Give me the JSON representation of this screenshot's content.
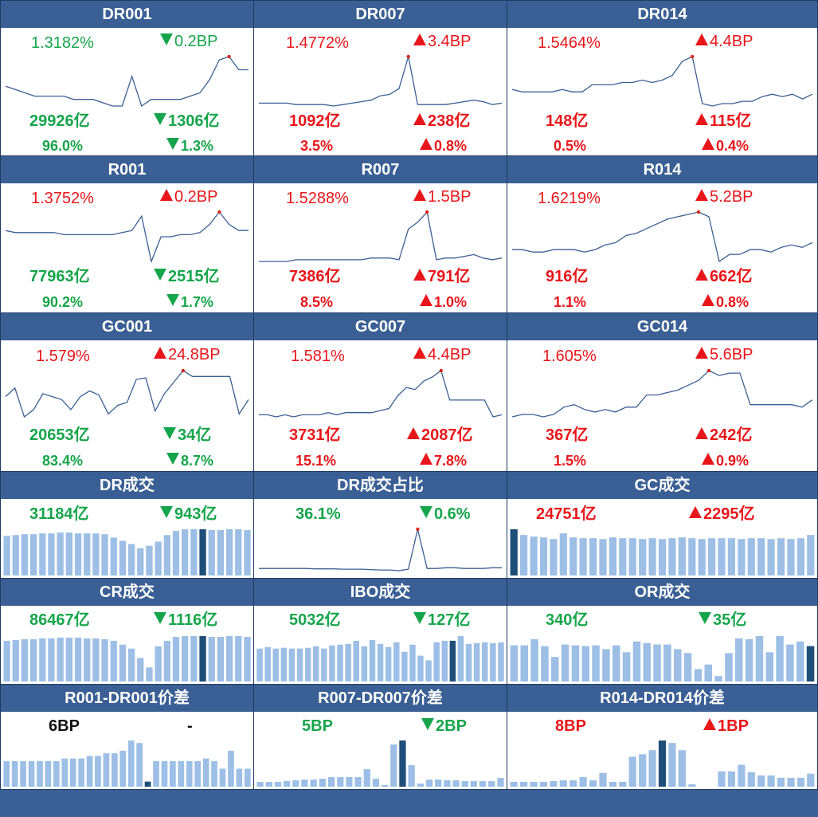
{
  "colors": {
    "title_bg": "#3a5f94",
    "line": "#3a5f94",
    "bar": "#9dbfe6",
    "bar_hi": "#1f4e79",
    "up": "#e8161a",
    "down": "#16a54b",
    "marker": "#d9261c"
  },
  "panels": [
    {
      "id": "dr001",
      "title": "DR001",
      "rate": "1.3182%",
      "rate_dir": "down",
      "chg": "0.2BP",
      "chg_dir": "down",
      "vol": "29926亿",
      "vol_dir": "down",
      "vol_chg": "1306亿",
      "vol_chg_dir": "down",
      "share": "96.0%",
      "share_dir": "down",
      "share_chg": "1.3%",
      "share_chg_dir": "down",
      "chart_data": {
        "type": "line",
        "values": [
          1.28,
          1.27,
          1.26,
          1.25,
          1.25,
          1.25,
          1.25,
          1.24,
          1.24,
          1.24,
          1.23,
          1.22,
          1.22,
          1.31,
          1.22,
          1.24,
          1.24,
          1.24,
          1.24,
          1.25,
          1.26,
          1.3,
          1.36,
          1.37,
          1.33,
          1.33
        ],
        "highlight": 23
      }
    },
    {
      "id": "dr007",
      "title": "DR007",
      "rate": "1.4772%",
      "rate_dir": "up",
      "chg": "3.4BP",
      "chg_dir": "up",
      "vol": "1092亿",
      "vol_dir": "up",
      "vol_chg": "238亿",
      "vol_chg_dir": "up",
      "share": "3.5%",
      "share_dir": "up",
      "share_chg": "0.8%",
      "share_chg_dir": "up",
      "chart_data": {
        "type": "line",
        "values": [
          1.42,
          1.42,
          1.42,
          1.42,
          1.41,
          1.41,
          1.41,
          1.41,
          1.4,
          1.41,
          1.42,
          1.43,
          1.44,
          1.47,
          1.48,
          1.52,
          1.74,
          1.41,
          1.41,
          1.41,
          1.41,
          1.42,
          1.43,
          1.44,
          1.43,
          1.41,
          1.42
        ],
        "highlight": 16
      }
    },
    {
      "id": "dr014",
      "title": "DR014",
      "rate": "1.5464%",
      "rate_dir": "up",
      "chg": "4.4BP",
      "chg_dir": "up",
      "vol": "148亿",
      "vol_dir": "up",
      "vol_chg": "115亿",
      "vol_chg_dir": "up",
      "share": "0.5%",
      "share_dir": "up",
      "share_chg": "0.4%",
      "share_chg_dir": "up",
      "chart_data": {
        "type": "line",
        "values": [
          1.5,
          1.49,
          1.49,
          1.49,
          1.49,
          1.5,
          1.49,
          1.49,
          1.52,
          1.52,
          1.52,
          1.53,
          1.53,
          1.54,
          1.53,
          1.54,
          1.56,
          1.62,
          1.64,
          1.44,
          1.43,
          1.44,
          1.44,
          1.45,
          1.45,
          1.47,
          1.48,
          1.47,
          1.48,
          1.46,
          1.48
        ],
        "highlight": 18
      }
    },
    {
      "id": "r001",
      "title": "R001",
      "rate": "1.3752%",
      "rate_dir": "up",
      "chg": "0.2BP",
      "chg_dir": "up",
      "vol": "77963亿",
      "vol_dir": "down",
      "vol_chg": "2515亿",
      "vol_chg_dir": "down",
      "share": "90.2%",
      "share_dir": "down",
      "share_chg": "1.7%",
      "share_chg_dir": "down",
      "chart_data": {
        "type": "line",
        "values": [
          1.33,
          1.32,
          1.32,
          1.32,
          1.32,
          1.32,
          1.31,
          1.31,
          1.31,
          1.31,
          1.31,
          1.31,
          1.32,
          1.33,
          1.4,
          1.18,
          1.3,
          1.3,
          1.31,
          1.31,
          1.32,
          1.36,
          1.42,
          1.36,
          1.33,
          1.33
        ],
        "highlight": 22
      }
    },
    {
      "id": "r007",
      "title": "R007",
      "rate": "1.5288%",
      "rate_dir": "up",
      "chg": "1.5BP",
      "chg_dir": "up",
      "vol": "7386亿",
      "vol_dir": "up",
      "vol_chg": "791亿",
      "vol_chg_dir": "up",
      "share": "8.5%",
      "share_dir": "up",
      "share_chg": "1.0%",
      "share_chg_dir": "up",
      "chart_data": {
        "type": "line",
        "values": [
          1.43,
          1.43,
          1.43,
          1.43,
          1.44,
          1.44,
          1.44,
          1.44,
          1.44,
          1.44,
          1.44,
          1.44,
          1.45,
          1.45,
          1.45,
          1.44,
          1.62,
          1.66,
          1.72,
          1.44,
          1.45,
          1.45,
          1.46,
          1.47,
          1.45,
          1.44,
          1.45
        ],
        "highlight": 18
      }
    },
    {
      "id": "r014",
      "title": "R014",
      "rate": "1.6219%",
      "rate_dir": "up",
      "chg": "5.2BP",
      "chg_dir": "up",
      "vol": "916亿",
      "vol_dir": "up",
      "vol_chg": "662亿",
      "vol_chg_dir": "up",
      "share": "1.1%",
      "share_dir": "up",
      "share_chg": "0.8%",
      "share_chg_dir": "up",
      "chart_data": {
        "type": "line",
        "values": [
          1.53,
          1.53,
          1.52,
          1.52,
          1.53,
          1.53,
          1.53,
          1.52,
          1.53,
          1.55,
          1.56,
          1.59,
          1.6,
          1.62,
          1.64,
          1.66,
          1.67,
          1.68,
          1.69,
          1.67,
          1.48,
          1.51,
          1.51,
          1.53,
          1.53,
          1.52,
          1.54,
          1.55,
          1.54,
          1.56
        ],
        "highlight": 18
      }
    },
    {
      "id": "gc001",
      "title": "GC001",
      "rate": "1.579%",
      "rate_dir": "up",
      "chg": "24.8BP",
      "chg_dir": "up",
      "vol": "20653亿",
      "vol_dir": "down",
      "vol_chg": "34亿",
      "vol_chg_dir": "down",
      "share": "83.4%",
      "share_dir": "down",
      "share_chg": "8.7%",
      "share_chg_dir": "down",
      "chart_data": {
        "type": "line",
        "values": [
          1.4,
          1.46,
          1.26,
          1.31,
          1.42,
          1.4,
          1.38,
          1.31,
          1.4,
          1.44,
          1.41,
          1.28,
          1.34,
          1.36,
          1.52,
          1.53,
          1.3,
          1.42,
          1.5,
          1.58,
          1.54,
          1.54,
          1.54,
          1.54,
          1.54,
          1.28,
          1.38
        ],
        "highlight": 19
      }
    },
    {
      "id": "gc007",
      "title": "GC007",
      "rate": "1.581%",
      "rate_dir": "up",
      "chg": "4.4BP",
      "chg_dir": "up",
      "vol": "3731亿",
      "vol_dir": "up",
      "vol_chg": "2087亿",
      "vol_chg_dir": "up",
      "share": "15.1%",
      "share_dir": "up",
      "share_chg": "7.8%",
      "share_chg_dir": "up",
      "chart_data": {
        "type": "line",
        "values": [
          1.37,
          1.37,
          1.36,
          1.37,
          1.36,
          1.37,
          1.37,
          1.37,
          1.38,
          1.37,
          1.38,
          1.38,
          1.38,
          1.38,
          1.39,
          1.4,
          1.46,
          1.5,
          1.49,
          1.53,
          1.55,
          1.58,
          1.44,
          1.44,
          1.44,
          1.44,
          1.44,
          1.36,
          1.37
        ],
        "highlight": 21
      }
    },
    {
      "id": "gc014",
      "title": "GC014",
      "rate": "1.605%",
      "rate_dir": "up",
      "chg": "5.6BP",
      "chg_dir": "up",
      "vol": "367亿",
      "vol_dir": "up",
      "vol_chg": "242亿",
      "vol_chg_dir": "up",
      "share": "1.5%",
      "share_dir": "up",
      "share_chg": "0.9%",
      "share_chg_dir": "up",
      "chart_data": {
        "type": "line",
        "values": [
          1.42,
          1.43,
          1.43,
          1.42,
          1.43,
          1.46,
          1.47,
          1.45,
          1.44,
          1.45,
          1.44,
          1.46,
          1.46,
          1.51,
          1.51,
          1.52,
          1.53,
          1.55,
          1.57,
          1.61,
          1.59,
          1.6,
          1.6,
          1.47,
          1.47,
          1.47,
          1.47,
          1.47,
          1.46,
          1.49
        ],
        "highlight": 19
      }
    },
    {
      "id": "dr_vol",
      "title": "DR成交",
      "v1": "31184亿",
      "v1_dir": "down",
      "v2": "943亿",
      "v2_dir": "down",
      "chart_data": {
        "type": "bar",
        "values": [
          48,
          49,
          50,
          50,
          51,
          51,
          52,
          52,
          51,
          51,
          51,
          50,
          46,
          42,
          38,
          33,
          36,
          41,
          49,
          54,
          56,
          56,
          56,
          55,
          55,
          56,
          56,
          55
        ],
        "highlight": 22
      }
    },
    {
      "id": "dr_share",
      "title": "DR成交占比",
      "v1": "36.1%",
      "v1_dir": "down",
      "v2": "0.6%",
      "v2_dir": "down",
      "chart_data": {
        "type": "line",
        "values": [
          30,
          30,
          30,
          30,
          30,
          30,
          29.5,
          29.5,
          29.5,
          29,
          29,
          29,
          28.5,
          28,
          28,
          27,
          29,
          83,
          30,
          30,
          31,
          31,
          30,
          30,
          30,
          31,
          31
        ],
        "highlight": 17
      }
    },
    {
      "id": "gc_vol",
      "title": "GC成交",
      "v1": "24751亿",
      "v1_dir": "up",
      "v2": "2295亿",
      "v2_dir": "up",
      "chart_data": {
        "type": "bar",
        "values": [
          57,
          50,
          48,
          47,
          45,
          52,
          47,
          46,
          46,
          45,
          47,
          46,
          46,
          45,
          46,
          45,
          46,
          47,
          46,
          45,
          46,
          46,
          46,
          45,
          46,
          46,
          45,
          46,
          45,
          46,
          50
        ],
        "highlight": 0
      }
    },
    {
      "id": "cr_vol",
      "title": "CR成交",
      "v1": "86467亿",
      "v1_dir": "down",
      "v2": "1116亿",
      "v2_dir": "down",
      "chart_data": {
        "type": "bar",
        "values": [
          52,
          53,
          54,
          54,
          55,
          55,
          56,
          56,
          56,
          55,
          55,
          54,
          52,
          47,
          42,
          30,
          18,
          45,
          52,
          57,
          58,
          58,
          58,
          57,
          57,
          58,
          58,
          57
        ],
        "highlight": 22
      }
    },
    {
      "id": "ibo_vol",
      "title": "IBO成交",
      "v1": "5032亿",
      "v1_dir": "down",
      "v2": "127亿",
      "v2_dir": "down",
      "chart_data": {
        "type": "bar",
        "values": [
          42,
          44,
          42,
          43,
          42,
          42,
          43,
          45,
          42,
          46,
          47,
          48,
          52,
          45,
          53,
          48,
          44,
          50,
          38,
          47,
          33,
          27,
          50,
          52,
          52,
          58,
          48,
          49,
          50,
          49,
          50
        ],
        "highlight": 24
      }
    },
    {
      "id": "or_vol",
      "title": "OR成交",
      "v1": "340亿",
      "v1_dir": "down",
      "v2": "35亿",
      "v2_dir": "down",
      "chart_data": {
        "type": "bar",
        "values": [
          47,
          47,
          55,
          46,
          32,
          48,
          47,
          46,
          47,
          42,
          47,
          38,
          52,
          50,
          48,
          48,
          42,
          37,
          16,
          22,
          7,
          37,
          56,
          55,
          59,
          38,
          59,
          48,
          52,
          46
        ],
        "highlight": 29
      }
    },
    {
      "id": "spread1",
      "title": "R001-DR001价差",
      "v1": "6BP",
      "v1_dir": "none",
      "v2": "-",
      "v2_dir": "none",
      "chart_data": {
        "type": "bar",
        "values": [
          5,
          5,
          5,
          5,
          5,
          5,
          5,
          5.5,
          5.5,
          5.5,
          6,
          6,
          6.5,
          6.5,
          7,
          9,
          8.5,
          1,
          5,
          5,
          5,
          5,
          5,
          5,
          5.5,
          5,
          3.5,
          7,
          3.5,
          3.5
        ],
        "highlight": 17
      }
    },
    {
      "id": "spread7",
      "title": "R007-DR007价差",
      "v1": "5BP",
      "v1_dir": "down",
      "v2": "2BP",
      "v2_dir": "down",
      "chart_data": {
        "type": "bar",
        "values": [
          0.6,
          0.6,
          0.6,
          0.7,
          0.8,
          0.9,
          0.9,
          1.0,
          1.2,
          1.2,
          1.2,
          1.2,
          2.2,
          1.0,
          0.2,
          5.3,
          5.8,
          2.7,
          0.4,
          0.9,
          0.9,
          0.8,
          0.8,
          0.7,
          0.7,
          0.7,
          0.7,
          1.1
        ],
        "highlight": 16
      }
    },
    {
      "id": "spread14",
      "title": "R014-DR014价差",
      "v1": "8BP",
      "v1_dir": "up",
      "v2": "1BP",
      "v2_dir": "up",
      "chart_data": {
        "type": "bar",
        "values": [
          0.6,
          0.6,
          0.6,
          0.6,
          0.7,
          0.8,
          0.8,
          1.2,
          0.8,
          1.7,
          0.6,
          0.6,
          3.7,
          4.0,
          4.5,
          5.7,
          5.4,
          4.5,
          0.3,
          0,
          0,
          1.9,
          1.9,
          2.7,
          1.8,
          1.4,
          1.4,
          1.1,
          1.1,
          1.1,
          1.6
        ],
        "highlight": 15
      }
    }
  ]
}
